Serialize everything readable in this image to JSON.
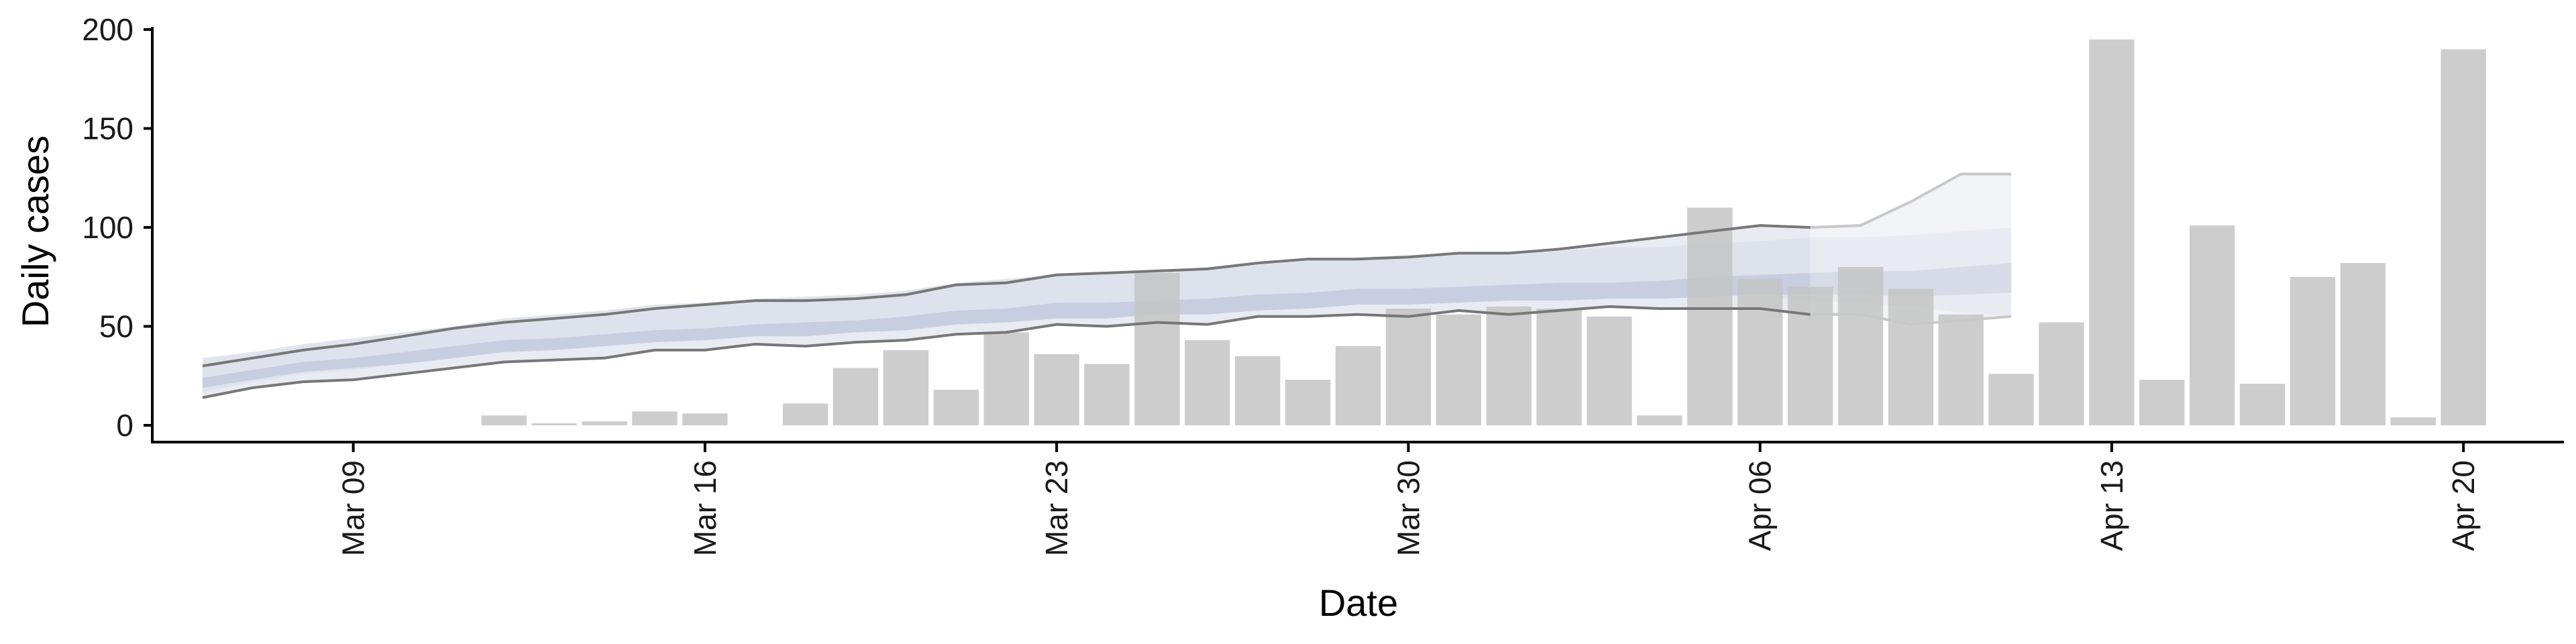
{
  "chart_data": {
    "type": "bar",
    "xlabel": "Date",
    "ylabel": "Daily cases",
    "ylim": [
      0,
      200
    ],
    "y_ticks": [
      0,
      50,
      100,
      150,
      200
    ],
    "x_ticks": [
      {
        "date": "2020-03-09",
        "label": "Mar 09"
      },
      {
        "date": "2020-03-16",
        "label": "Mar 16"
      },
      {
        "date": "2020-03-23",
        "label": "Mar 23"
      },
      {
        "date": "2020-03-30",
        "label": "Mar 30"
      },
      {
        "date": "2020-04-06",
        "label": "Apr 06"
      },
      {
        "date": "2020-04-13",
        "label": "Apr 13"
      },
      {
        "date": "2020-04-20",
        "label": "Apr 20"
      }
    ],
    "x_range": [
      "2020-03-05",
      "2020-04-22"
    ],
    "grid": false,
    "bars": [
      {
        "date": "2020-03-12",
        "value": 5
      },
      {
        "date": "2020-03-13",
        "value": 1
      },
      {
        "date": "2020-03-14",
        "value": 2
      },
      {
        "date": "2020-03-15",
        "value": 7
      },
      {
        "date": "2020-03-16",
        "value": 6
      },
      {
        "date": "2020-03-18",
        "value": 11
      },
      {
        "date": "2020-03-19",
        "value": 29
      },
      {
        "date": "2020-03-20",
        "value": 38
      },
      {
        "date": "2020-03-21",
        "value": 18
      },
      {
        "date": "2020-03-22",
        "value": 47
      },
      {
        "date": "2020-03-23",
        "value": 36
      },
      {
        "date": "2020-03-24",
        "value": 31
      },
      {
        "date": "2020-03-25",
        "value": 77
      },
      {
        "date": "2020-03-26",
        "value": 43
      },
      {
        "date": "2020-03-27",
        "value": 35
      },
      {
        "date": "2020-03-28",
        "value": 23
      },
      {
        "date": "2020-03-29",
        "value": 40
      },
      {
        "date": "2020-03-30",
        "value": 59
      },
      {
        "date": "2020-03-31",
        "value": 56
      },
      {
        "date": "2020-04-01",
        "value": 60
      },
      {
        "date": "2020-04-02",
        "value": 59
      },
      {
        "date": "2020-04-03",
        "value": 55
      },
      {
        "date": "2020-04-04",
        "value": 5
      },
      {
        "date": "2020-04-05",
        "value": 110
      },
      {
        "date": "2020-04-06",
        "value": 74
      },
      {
        "date": "2020-04-07",
        "value": 70
      },
      {
        "date": "2020-04-08",
        "value": 80
      },
      {
        "date": "2020-04-09",
        "value": 69
      },
      {
        "date": "2020-04-10",
        "value": 56
      },
      {
        "date": "2020-04-11",
        "value": 26
      },
      {
        "date": "2020-04-12",
        "value": 52
      },
      {
        "date": "2020-04-13",
        "value": 195
      },
      {
        "date": "2020-04-14",
        "value": 23
      },
      {
        "date": "2020-04-15",
        "value": 101
      },
      {
        "date": "2020-04-16",
        "value": 21
      },
      {
        "date": "2020-04-17",
        "value": 75
      },
      {
        "date": "2020-04-18",
        "value": 82
      },
      {
        "date": "2020-04-19",
        "value": 4
      },
      {
        "date": "2020-04-20",
        "value": 190
      }
    ],
    "bands": {
      "dates": [
        "2020-03-06",
        "2020-03-07",
        "2020-03-08",
        "2020-03-09",
        "2020-03-10",
        "2020-03-11",
        "2020-03-12",
        "2020-03-13",
        "2020-03-14",
        "2020-03-15",
        "2020-03-16",
        "2020-03-17",
        "2020-03-18",
        "2020-03-19",
        "2020-03-20",
        "2020-03-21",
        "2020-03-22",
        "2020-03-23",
        "2020-03-24",
        "2020-03-25",
        "2020-03-26",
        "2020-03-27",
        "2020-03-28",
        "2020-03-29",
        "2020-03-30",
        "2020-03-31",
        "2020-04-01",
        "2020-04-02",
        "2020-04-03",
        "2020-04-04",
        "2020-04-05",
        "2020-04-06",
        "2020-04-07",
        "2020-04-08",
        "2020-04-09",
        "2020-04-10",
        "2020-04-11"
      ],
      "outer_upper": [
        30,
        34,
        38,
        41,
        45,
        49,
        52,
        54,
        56,
        59,
        61,
        63,
        63,
        64,
        66,
        71,
        72,
        76,
        77,
        78,
        79,
        82,
        84,
        84,
        85,
        87,
        87,
        89,
        92,
        95,
        98,
        101,
        100,
        101,
        113,
        127,
        127
      ],
      "outer_lower": [
        14,
        19,
        22,
        23,
        26,
        29,
        32,
        33,
        34,
        38,
        38,
        41,
        40,
        42,
        43,
        46,
        47,
        51,
        50,
        52,
        51,
        55,
        55,
        56,
        55,
        58,
        56,
        58,
        60,
        59,
        59,
        59,
        56,
        56,
        51,
        53,
        55
      ],
      "inner_upper": [
        34,
        37,
        41,
        44,
        47,
        50,
        54,
        56,
        58,
        61,
        62,
        64,
        65,
        66,
        68,
        72,
        74,
        76,
        77,
        78,
        80,
        82,
        83,
        85,
        86,
        87,
        87,
        88,
        90,
        90,
        92,
        93,
        95,
        95,
        96,
        98,
        100
      ],
      "inner_lower": [
        17,
        22,
        26,
        28,
        31,
        34,
        37,
        38,
        40,
        43,
        44,
        46,
        46,
        48,
        49,
        52,
        53,
        56,
        56,
        58,
        58,
        61,
        61,
        62,
        62,
        63,
        63,
        64,
        65,
        65,
        66,
        65,
        63,
        62,
        60,
        57,
        55
      ],
      "core_upper": [
        24,
        28,
        32,
        34,
        37,
        40,
        43,
        44,
        46,
        48,
        49,
        51,
        52,
        53,
        55,
        58,
        59,
        62,
        62,
        63,
        64,
        66,
        67,
        69,
        69,
        70,
        71,
        72,
        72,
        73,
        75,
        76,
        77,
        78,
        78,
        80,
        82
      ],
      "core_lower": [
        19,
        23,
        27,
        29,
        31,
        34,
        37,
        38,
        40,
        42,
        43,
        45,
        45,
        47,
        48,
        51,
        52,
        54,
        54,
        56,
        56,
        58,
        59,
        61,
        61,
        62,
        63,
        63,
        64,
        64,
        65,
        66,
        66,
        66,
        65,
        66,
        67
      ],
      "forecast_start": "2020-04-07"
    }
  }
}
